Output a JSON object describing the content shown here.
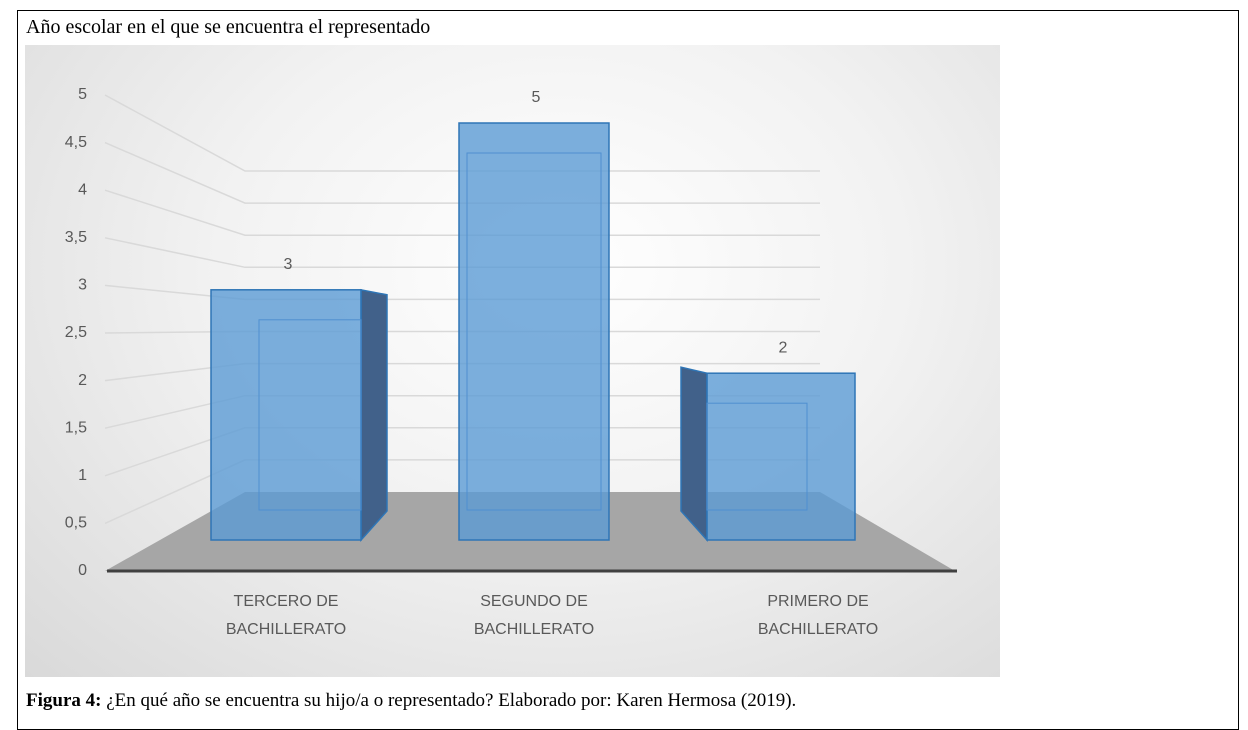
{
  "chart_data": {
    "type": "bar",
    "title": "Año escolar en el que se encuentra el representado",
    "categories": [
      "TERCERO DE BACHILLERATO",
      "SEGUNDO DE BACHILLERATO",
      "PRIMERO DE BACHILLERATO"
    ],
    "values": [
      3,
      5,
      2
    ],
    "color": "#5b9bd5",
    "ylim": [
      0,
      5
    ],
    "yticks": [
      0,
      {
        "value": 0.5,
        "label": "0,5"
      },
      1,
      {
        "value": 1.5,
        "label": "1,5"
      },
      2,
      {
        "value": 2.5,
        "label": "2,5"
      },
      3,
      {
        "value": 3.5,
        "label": "3,5"
      },
      4,
      {
        "value": 4.5,
        "label": "4,5"
      },
      5
    ],
    "grid": true,
    "caption_label": "Figura 4:",
    "caption_text": "¿En qué año se encuentra su hijo/a o representado? Elaborado por: Karen Hermosa (2019)."
  }
}
